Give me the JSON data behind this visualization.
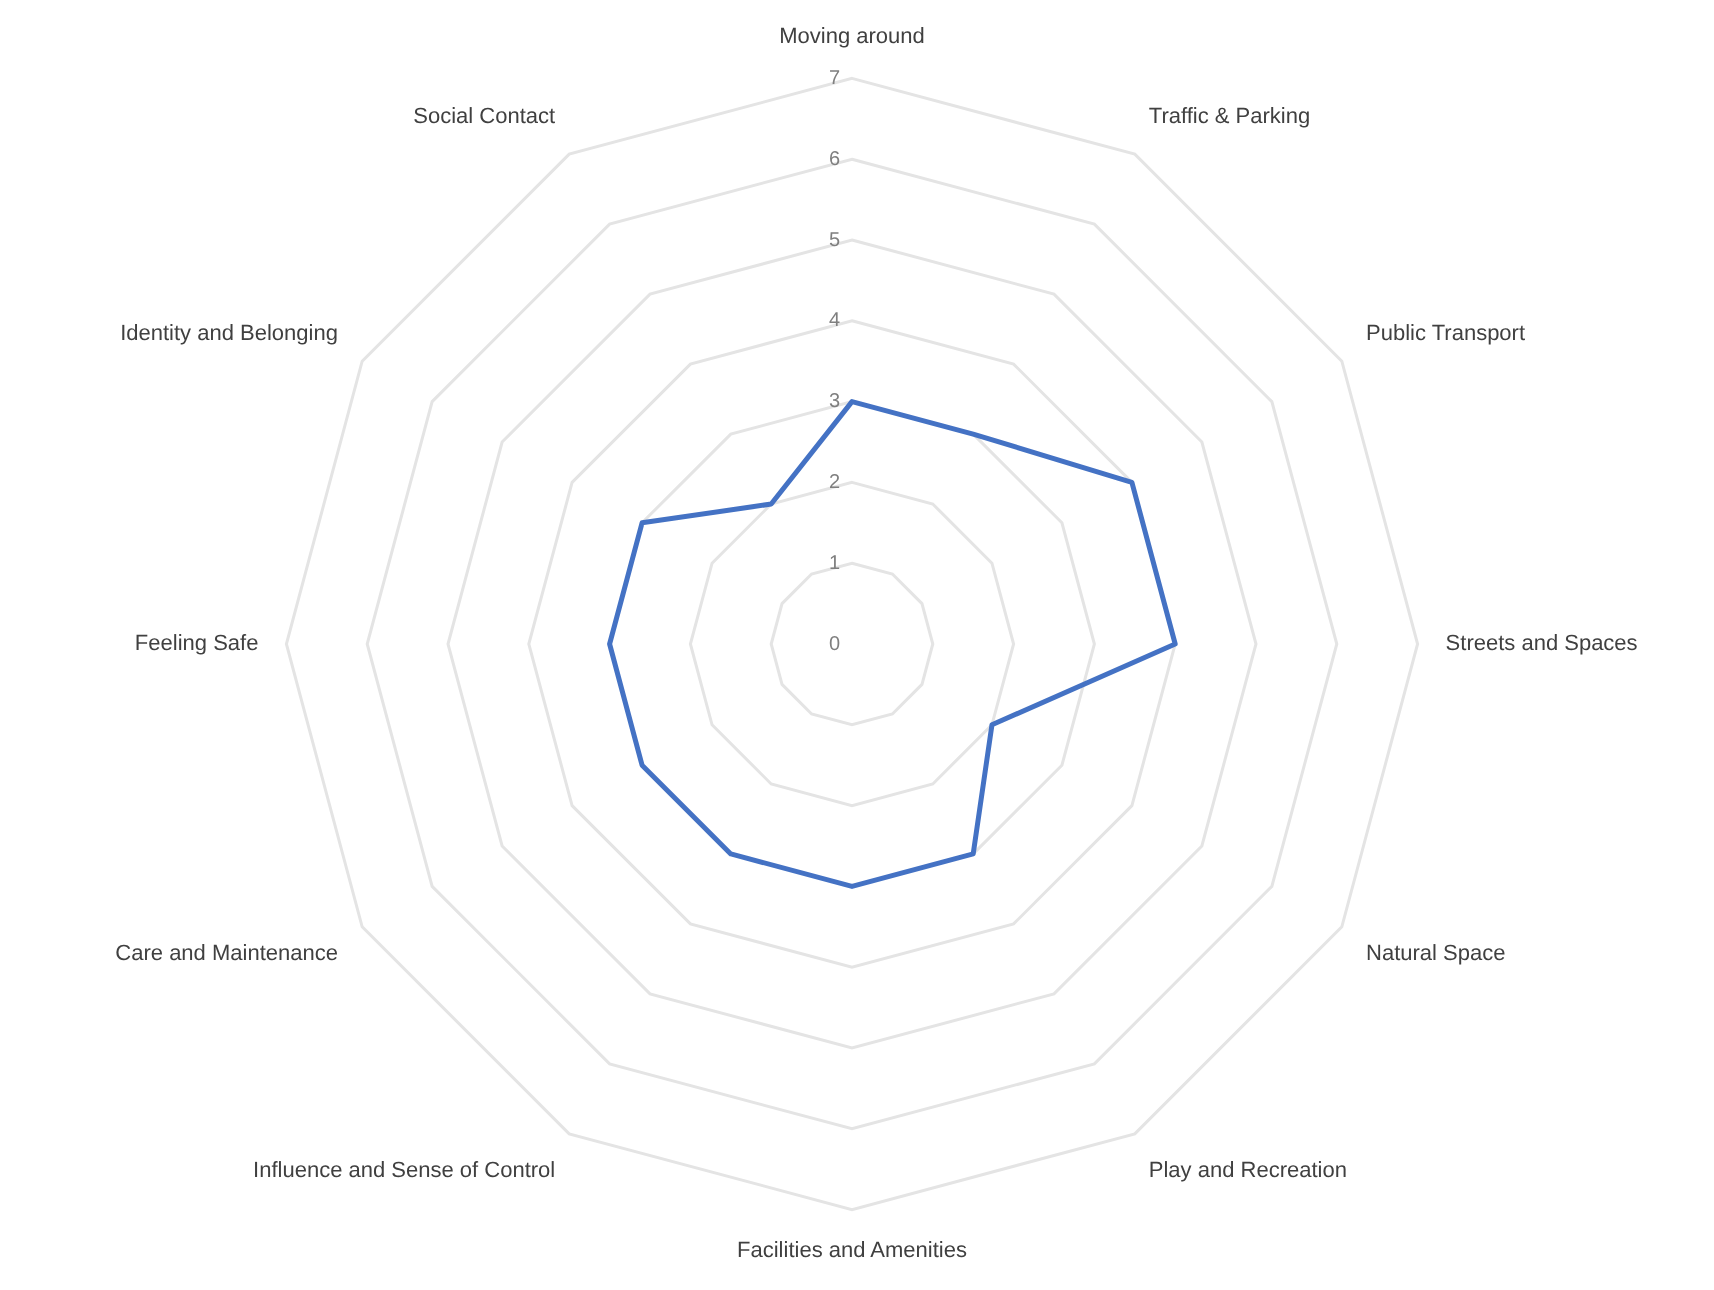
{
  "chart_data": {
    "type": "radar",
    "categories": [
      "Moving around",
      "Traffic & Parking",
      "Public Transport",
      "Streets and Spaces",
      "Natural Space",
      "Play and Recreation",
      "Facilities and Amenities",
      "Influence and Sense of Control",
      "Care and Maintenance",
      "Feeling Safe",
      "Identity and Belonging",
      "Social Contact"
    ],
    "series": [
      {
        "color": "#4472c4",
        "values": [
          3,
          3,
          4,
          4,
          2,
          3,
          3,
          3,
          3,
          3,
          3,
          2
        ]
      }
    ],
    "ylim": [
      0,
      7
    ],
    "yticks": [
      0,
      1,
      2,
      3,
      4,
      5,
      6,
      7
    ],
    "grid": true,
    "legend": false,
    "marker": "none",
    "line_style": "solid"
  }
}
